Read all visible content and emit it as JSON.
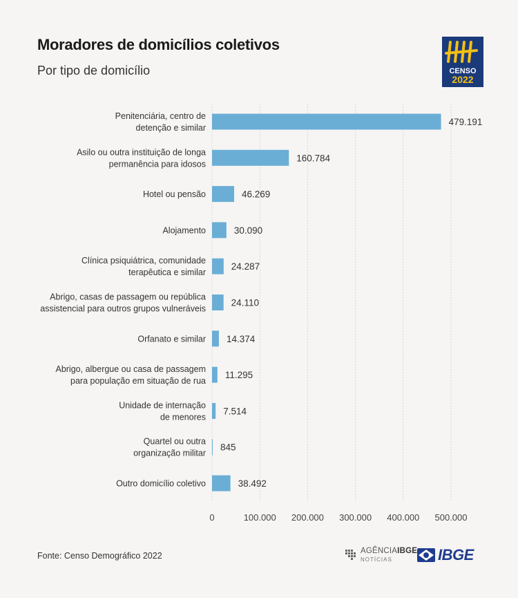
{
  "header": {
    "title": "Moradores de domicílios coletivos",
    "subtitle": "Por tipo de domicílio"
  },
  "logo": {
    "icon": "censo-2022-logo-icon",
    "line1": "CENSO",
    "line2": "2022",
    "bg_color": "#1b3a7a",
    "accent_color": "#f2c014"
  },
  "chart_data": {
    "type": "bar",
    "orientation": "horizontal",
    "categories": [
      [
        "Penitenciária, centro de",
        "detenção e similar"
      ],
      [
        "Asilo ou outra instituição de longa",
        "permanência para idosos"
      ],
      [
        "Hotel ou pensão"
      ],
      [
        "Alojamento"
      ],
      [
        "Clínica psiquiátrica, comunidade",
        "terapêutica e similar"
      ],
      [
        "Abrigo, casas de passagem ou república",
        "assistencial para outros grupos vulneráveis"
      ],
      [
        "Orfanato e similar"
      ],
      [
        "Abrigo, albergue ou casa de passagem",
        "para população em situação de rua"
      ],
      [
        "Unidade de internação",
        "de menores"
      ],
      [
        "Quartel ou outra",
        "organização militar"
      ],
      [
        "Outro domicílio coletivo"
      ]
    ],
    "values": [
      479191,
      160784,
      46269,
      30090,
      24287,
      24110,
      14374,
      11295,
      7514,
      845,
      38492
    ],
    "value_labels": [
      "479.191",
      "160.784",
      "46.269",
      "30.090",
      "24.287",
      "24.110",
      "14.374",
      "11.295",
      "7.514",
      "845",
      "38.492"
    ],
    "xlim": [
      0,
      500000
    ],
    "x_ticks": [
      0,
      100000,
      200000,
      300000,
      400000,
      500000
    ],
    "x_tick_labels": [
      "0",
      "100.000",
      "200.000",
      "300.000",
      "400.000",
      "500.000"
    ],
    "grid": true,
    "bar_color": "#6aaed6"
  },
  "footer": {
    "source": "Fonte: Censo Demográfico 2022",
    "agencia_prefix": "AGÊNCIA",
    "agencia_brand": "IBGE",
    "agencia_sub": "NOTÍCIAS",
    "ibge": "IBGE"
  }
}
